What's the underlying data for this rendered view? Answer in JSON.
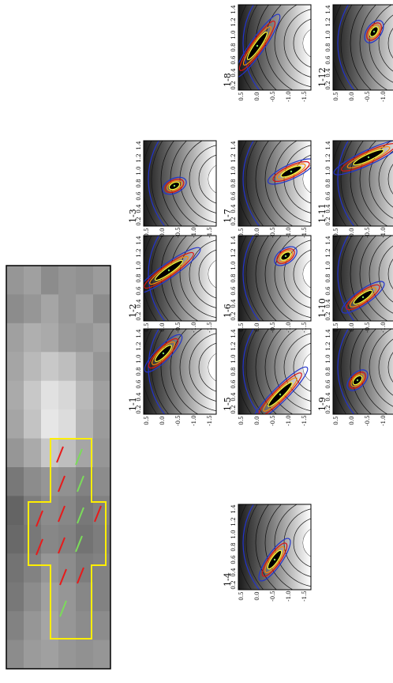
{
  "figure": {
    "panels": [
      {
        "label": "1-1",
        "variant": "1"
      },
      {
        "label": "1-2",
        "variant": "2"
      },
      {
        "label": "1-3",
        "variant": "3"
      },
      {
        "label": "1-4",
        "variant": "4"
      },
      {
        "label": "1-5",
        "variant": "5"
      },
      {
        "label": "1-6",
        "variant": "6"
      },
      {
        "label": "1-7",
        "variant": "7"
      },
      {
        "label": "1-8",
        "variant": "8"
      },
      {
        "label": "1-9",
        "variant": "9"
      },
      {
        "label": "1-10",
        "variant": "10"
      },
      {
        "label": "1-11",
        "variant": "11"
      },
      {
        "label": "1-12",
        "variant": "12"
      }
    ],
    "y_ticks": [
      "1.4",
      "1.2",
      "1.0",
      "0.8",
      "0.6",
      "0.4",
      "0.2"
    ],
    "x_ticks": [
      "0.5",
      "0.0",
      "-0.5",
      "-1.0",
      "-1.5"
    ]
  },
  "colors": {
    "frame": "#000000",
    "mask_outline": "#ffee00",
    "vector_red": "#e81a1a",
    "vector_green": "#7bdc5a",
    "contour_blue": "#2233cc",
    "contour_red": "#dd1111",
    "contour_orange": "#ff8800",
    "contour_yellow": "#ffff33"
  }
}
